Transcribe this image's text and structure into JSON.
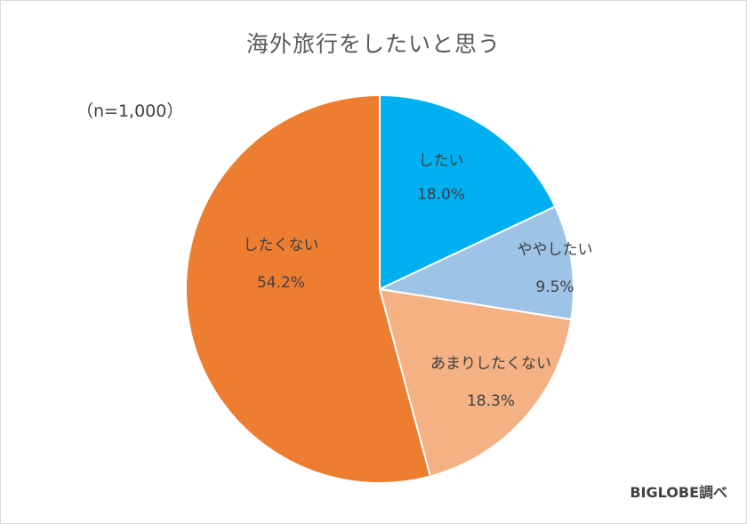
{
  "chart_data": {
    "type": "pie",
    "title": "海外旅行をしたいと思う",
    "note": "（n=1,000）",
    "source": "BIGLOBE調べ",
    "slices": [
      {
        "label": "したい",
        "value": 18.0,
        "value_label": "18.0%",
        "color": "#00b0f0"
      },
      {
        "label": "ややしたい",
        "value": 9.5,
        "value_label": "9.5%",
        "color": "#9dc3e6"
      },
      {
        "label": "あまりしたくない",
        "value": 18.3,
        "value_label": "18.3%",
        "color": "#f4b183"
      },
      {
        "label": "したくない",
        "value": 54.2,
        "value_label": "54.2%",
        "color": "#ed7d31"
      }
    ]
  }
}
